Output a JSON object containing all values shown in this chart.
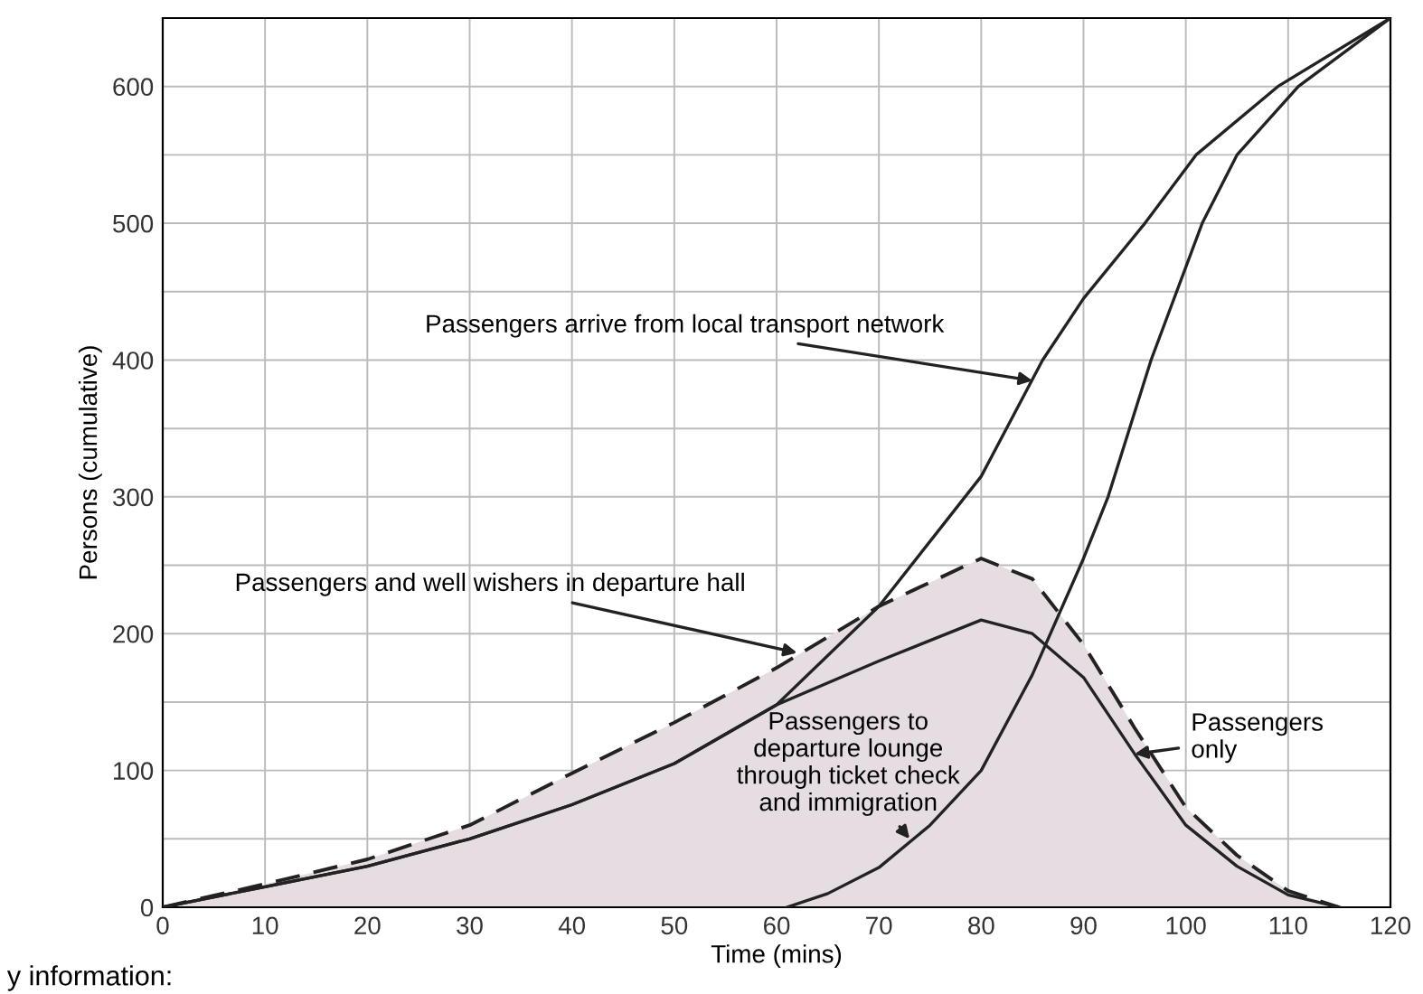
{
  "chart_data": {
    "type": "line",
    "xlabel": "Time (mins)",
    "ylabel": "Persons (cumulative)",
    "xlim": [
      0,
      120
    ],
    "ylim": [
      0,
      650
    ],
    "xticks": [
      0,
      10,
      20,
      30,
      40,
      50,
      60,
      70,
      80,
      90,
      100,
      110,
      120
    ],
    "yticks": [
      0,
      {
        "value": 50,
        "label": null
      },
      100,
      {
        "value": 150,
        "label": null
      },
      200,
      {
        "value": 250,
        "label": null
      },
      300,
      {
        "value": 350,
        "label": null
      },
      400,
      {
        "value": 450,
        "label": null
      },
      500,
      {
        "value": 550,
        "label": null
      },
      600
    ],
    "grid": true,
    "legend": false,
    "series": [
      {
        "type": "area",
        "line_style": "dashed",
        "color": "#e6dde3",
        "x": [
          0,
          10,
          20,
          30,
          40,
          50,
          60,
          70,
          80,
          85,
          90,
          95,
          100,
          105,
          110,
          115
        ],
        "values": [
          0,
          17,
          35,
          60,
          98,
          135,
          175,
          220,
          255,
          240,
          192,
          131,
          73,
          38,
          12,
          0
        ]
      },
      {
        "line_style": "solid",
        "color": "#222222",
        "x": [
          0,
          10,
          20,
          30,
          40,
          50,
          60,
          70,
          80,
          85,
          90,
          95,
          100,
          105,
          110,
          115
        ],
        "values": [
          0,
          15,
          30,
          50,
          75,
          105,
          148,
          180,
          210,
          200,
          168,
          112,
          60,
          30,
          9,
          0
        ]
      },
      {
        "line_style": "solid",
        "color": "#222222",
        "x": [
          0,
          10,
          20,
          30,
          40,
          50,
          60,
          70,
          80,
          86,
          90,
          96,
          101,
          109,
          120
        ],
        "values": [
          0,
          15,
          30,
          50,
          75,
          105,
          148,
          220,
          315,
          400,
          445,
          500,
          550,
          600,
          650
        ]
      },
      {
        "line_style": "solid",
        "color": "#222222",
        "x": [
          61,
          65,
          70,
          75,
          80,
          85,
          90,
          92.4,
          96.6,
          101.6,
          105,
          111,
          120
        ],
        "values": [
          0,
          10,
          29,
          60,
          100,
          170,
          255,
          300,
          400,
          500,
          550,
          600,
          650
        ]
      }
    ],
    "annotations": [
      {
        "text": "Passengers arrive from local transport network",
        "x": 85,
        "y": 385
      },
      {
        "text": "Passengers and well wishers in departure hall",
        "x": 62,
        "y": 186
      },
      {
        "text": "Passengers to\ndeparture lounge\nthrough ticket check\nand immigration",
        "x": 73,
        "y": 50
      },
      {
        "text": "Passengers\nonly",
        "x": 95,
        "y": 112
      },
      "y information:"
    ]
  }
}
